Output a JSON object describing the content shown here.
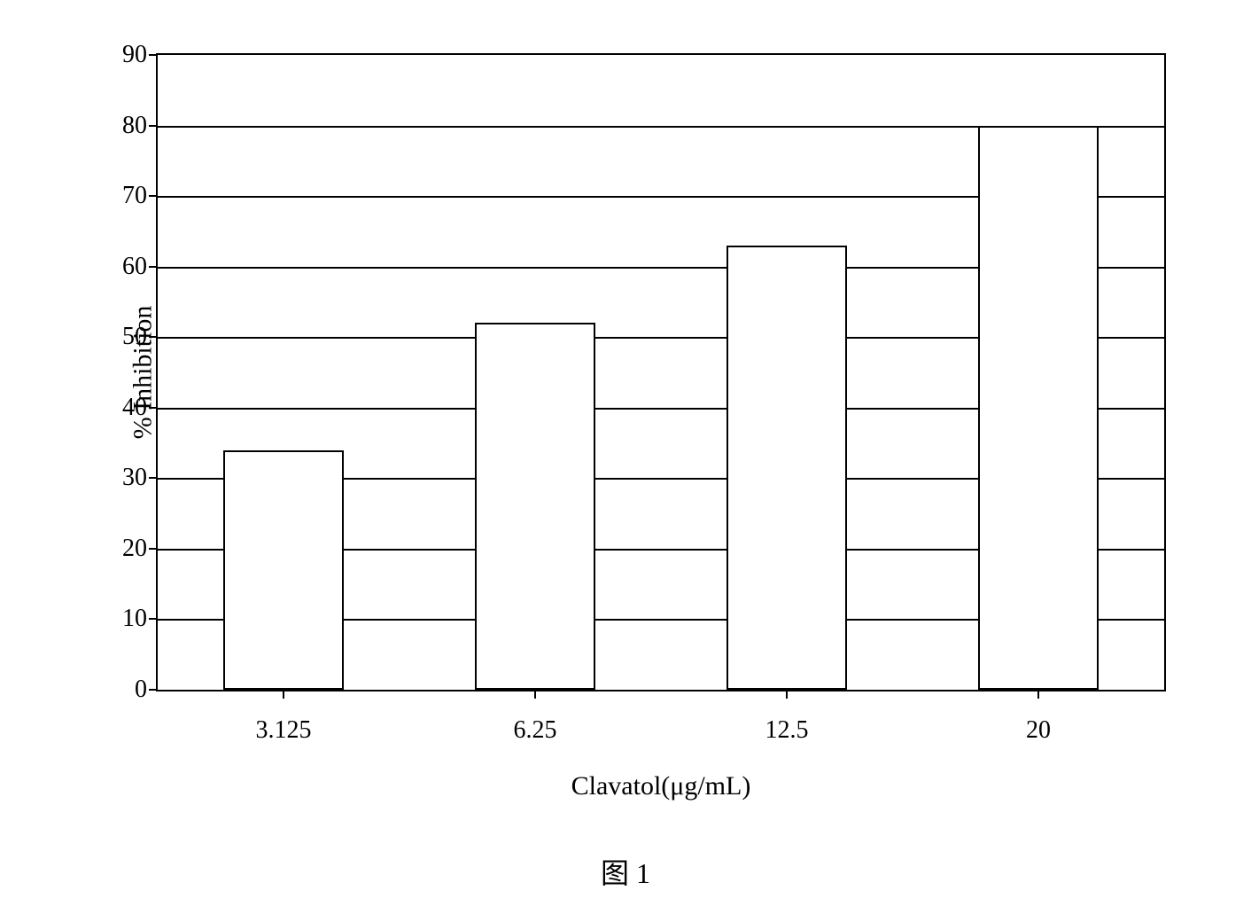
{
  "chart": {
    "type": "bar",
    "categories": [
      "3.125",
      "6.25",
      "12.5",
      "20"
    ],
    "values": [
      34,
      52,
      63,
      80
    ],
    "bar_fill_color": "#ffffff",
    "bar_border_color": "#000000",
    "ylabel": "% Inhibition",
    "xlabel": "Clavatol(μg/mL)",
    "ylim_min": 0,
    "ylim_max": 90,
    "ytick_step": 10,
    "yticks": [
      0,
      10,
      20,
      30,
      40,
      50,
      60,
      70,
      80,
      90
    ],
    "background_color": "#ffffff",
    "grid_color": "#000000",
    "border_color": "#000000",
    "label_fontsize": 28,
    "axis_title_fontsize": 30,
    "bar_width_percent": 12,
    "bar_positions_percent": [
      12.5,
      37.5,
      62.5,
      87.5
    ]
  },
  "caption": "图 1"
}
